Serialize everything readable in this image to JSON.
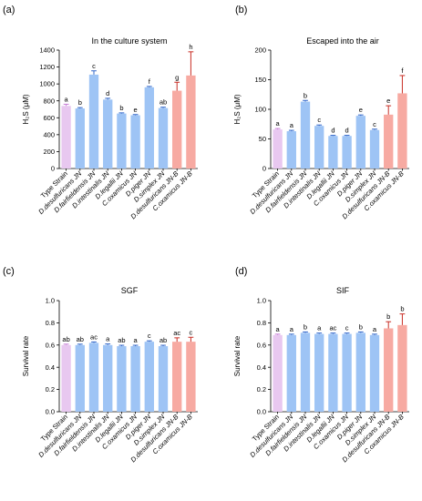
{
  "colors": {
    "type_strain": "#e8c8f0",
    "jn": "#9ec4f5",
    "jnb": "#f7aaa2",
    "err_type": "#c67ad6",
    "err_jn": "#2f65c9",
    "err_jnb": "#c82d24"
  },
  "chart_data": [
    {
      "panel": "(a)",
      "type": "bar",
      "title": "In the culture system",
      "ylabel": "H₂S (μM)",
      "ylim": [
        0,
        1400
      ],
      "yticks": [
        0,
        200,
        400,
        600,
        800,
        1000,
        1200,
        1400
      ],
      "ytick_labels": [
        "0",
        "200",
        "400",
        "600",
        "800",
        "1000",
        "1200",
        "1400"
      ],
      "categories": [
        "Type Strain",
        "D.desulfuricans JN",
        "D.fairfieldensis JN",
        "D.intestinalis JN",
        "D.legallii JN",
        "C.oxamicus JN",
        "D.piger JN",
        "D.simplex JN",
        "D.desulfuricans JN-B",
        "C.oxamicus JN-B"
      ],
      "groups": [
        "type",
        "jn",
        "jn",
        "jn",
        "jn",
        "jn",
        "jn",
        "jn",
        "jnb",
        "jnb"
      ],
      "values": [
        740,
        710,
        1110,
        815,
        650,
        630,
        960,
        715,
        920,
        1100
      ],
      "errors": [
        20,
        10,
        45,
        15,
        8,
        8,
        10,
        10,
        100,
        280
      ],
      "significance": [
        "a",
        "b",
        "c",
        "d",
        "b",
        "e",
        "f",
        "ab",
        "g",
        "h"
      ]
    },
    {
      "panel": "(b)",
      "type": "bar",
      "title": "Escaped into the air",
      "ylabel": "H₂S (μM)",
      "ylim": [
        0,
        200
      ],
      "yticks": [
        0,
        50,
        100,
        150,
        200
      ],
      "ytick_labels": [
        "0",
        "50",
        "100",
        "150",
        "200"
      ],
      "categories": [
        "Type Strain",
        "D.desulfuricans JN",
        "D.fairfieldensis JN",
        "D.intestinalis JN",
        "D.legallii JN",
        "C.oxamicus JN",
        "D.piger JN",
        "D.simplex JN",
        "D.desulfuricans JN-B",
        "C.oxamicus JN-B"
      ],
      "groups": [
        "type",
        "jn",
        "jn",
        "jn",
        "jn",
        "jn",
        "jn",
        "jn",
        "jnb",
        "jnb"
      ],
      "values": [
        66,
        63,
        113,
        72,
        55,
        55,
        89,
        65,
        91,
        127
      ],
      "errors": [
        1.5,
        1.5,
        2,
        1.5,
        1,
        1,
        1.5,
        1.5,
        15,
        30
      ],
      "significance": [
        "a",
        "a",
        "b",
        "c",
        "d",
        "d",
        "e",
        "c",
        "e",
        "f"
      ]
    },
    {
      "panel": "(c)",
      "type": "bar",
      "title": "SGF",
      "ylabel": "Survival rate",
      "ylim": [
        0,
        1.0
      ],
      "yticks": [
        0,
        0.2,
        0.4,
        0.6,
        0.8,
        1.0
      ],
      "ytick_labels": [
        "0.0",
        "0.2",
        "0.4",
        "0.6",
        "0.8",
        "1.0"
      ],
      "categories": [
        "Type Strain",
        "D.desulfuricans JN",
        "D.fairfieldensis JN",
        "D.intestinalis JN",
        "D.legallii JN",
        "C.oxamicus JN",
        "D.piger JN",
        "D.simplex JN",
        "D.desulfuricans JN-B",
        "C.oxamicus JN-B"
      ],
      "groups": [
        "type",
        "jn",
        "jn",
        "jn",
        "jn",
        "jn",
        "jn",
        "jn",
        "jnb",
        "jnb"
      ],
      "values": [
        0.6,
        0.6,
        0.62,
        0.6,
        0.59,
        0.59,
        0.63,
        0.59,
        0.63,
        0.63
      ],
      "errors": [
        0.008,
        0.008,
        0.008,
        0.01,
        0.008,
        0.008,
        0.008,
        0.008,
        0.035,
        0.04
      ],
      "significance": [
        "ab",
        "ab",
        "ac",
        "a",
        "ab",
        "a",
        "c",
        "ab",
        "ac",
        "c"
      ]
    },
    {
      "panel": "(d)",
      "type": "bar",
      "title": "SIF",
      "ylabel": "Survival rate",
      "ylim": [
        0,
        1.0
      ],
      "yticks": [
        0,
        0.2,
        0.4,
        0.6,
        0.8,
        1.0
      ],
      "ytick_labels": [
        "0.0",
        "0.2",
        "0.4",
        "0.6",
        "0.8",
        "1.0"
      ],
      "categories": [
        "Type Strain",
        "D.desulfuricans JN",
        "D.fairfieldensis JN",
        "D.intestinalis JN",
        "D.legallii JN",
        "C.oxamicus JN",
        "D.piger JN",
        "D.simplex JN",
        "D.desulfuricans JN-B",
        "C.oxamicus JN-B"
      ],
      "groups": [
        "type",
        "jn",
        "jn",
        "jn",
        "jn",
        "jn",
        "jn",
        "jn",
        "jnb",
        "jnb"
      ],
      "values": [
        0.69,
        0.69,
        0.71,
        0.7,
        0.7,
        0.7,
        0.71,
        0.69,
        0.75,
        0.78
      ],
      "errors": [
        0.008,
        0.008,
        0.008,
        0.008,
        0.008,
        0.008,
        0.008,
        0.008,
        0.06,
        0.1
      ],
      "significance": [
        "a",
        "a",
        "b",
        "a",
        "ac",
        "c",
        "b",
        "a",
        "b",
        "b"
      ]
    }
  ]
}
